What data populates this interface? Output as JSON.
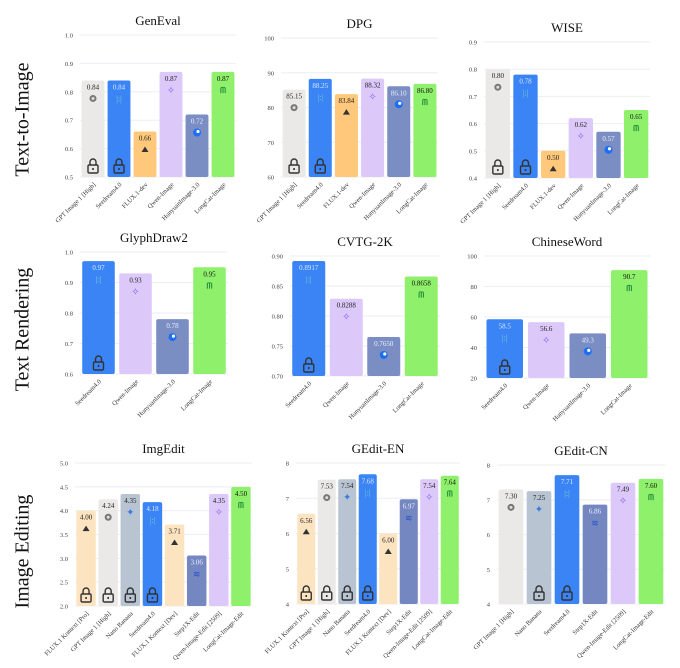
{
  "row_labels": [
    "Text-to-Image",
    "Text Rendering",
    "Image Editing"
  ],
  "models": {
    "gpt": {
      "color": "#ebe9e8",
      "icon": "openai-icon",
      "text": "#222"
    },
    "seedream": {
      "color": "#3a84f6",
      "icon": "seedream-icon",
      "text": "#dce8ff"
    },
    "flux": {
      "color": "#ffc87a",
      "icon": "flux-icon",
      "text": "#222"
    },
    "fluxdev": {
      "color": "#fde4c0",
      "icon": "flux-icon",
      "text": "#222"
    },
    "qwen": {
      "color": "#dcc9fa",
      "icon": "qwen-icon",
      "text": "#222"
    },
    "hunyuan": {
      "color": "#7a8ec4",
      "icon": "hunyuan-icon",
      "text": "#e8eeff"
    },
    "step1x": {
      "color": "#7587c1",
      "icon": "step1x-icon",
      "text": "#e8eeff"
    },
    "nano": {
      "color": "#b9c4d3",
      "icon": "nano-banana-icon",
      "text": "#222"
    },
    "longcat": {
      "color": "#8ff06b",
      "icon": "longcat-icon",
      "text": "#111"
    }
  },
  "chart_data": [
    {
      "type": "bar",
      "title": "GenEval",
      "ylim": [
        0.5,
        1.0
      ],
      "yticks": [
        "0.5",
        "0.6",
        "0.7",
        "0.8",
        "0.9",
        "1.0"
      ],
      "grid": true,
      "categories": [
        "GPT Image 1 [High]",
        "Seedream4.0",
        "FLUX.1-dev",
        "Qwen-Image",
        "HunyuanImage-3.0",
        "LongCat-Image"
      ],
      "values": [
        0.84,
        0.84,
        0.66,
        0.87,
        0.72,
        0.87
      ],
      "value_labels": [
        "0.84",
        "0.84",
        "0.66",
        "0.87",
        "0.72",
        "0.87"
      ],
      "models": [
        "gpt",
        "seedream",
        "flux",
        "qwen",
        "hunyuan",
        "longcat"
      ],
      "locked": [
        true,
        true,
        false,
        false,
        false,
        false
      ]
    },
    {
      "type": "bar",
      "title": "DPG",
      "ylim": [
        60,
        100
      ],
      "yticks": [
        "60",
        "70",
        "80",
        "90",
        "100"
      ],
      "grid": true,
      "categories": [
        "GPT Image 1 [High]",
        "Seedream4.0",
        "FLUX.1-dev",
        "Qwen-Image",
        "HunyuanImage-3.0",
        "LongCat-Image"
      ],
      "values": [
        85.15,
        88.25,
        83.84,
        88.32,
        86.1,
        86.8
      ],
      "value_labels": [
        "85.15",
        "88.25",
        "83.84",
        "88.32",
        "86.10",
        "86.80"
      ],
      "models": [
        "gpt",
        "seedream",
        "flux",
        "qwen",
        "hunyuan",
        "longcat"
      ],
      "locked": [
        true,
        true,
        false,
        false,
        false,
        false
      ]
    },
    {
      "type": "bar",
      "title": "WISE",
      "ylim": [
        0.4,
        0.9
      ],
      "yticks": [
        "0.4",
        "0.5",
        "0.6",
        "0.7",
        "0.8",
        "0.9"
      ],
      "grid": true,
      "categories": [
        "GPT Image 1 [High]",
        "Seedream4.0",
        "FLUX.1-dev",
        "Qwen-Image",
        "HunyuanImage-3.0",
        "LongCat-Image"
      ],
      "values": [
        0.8,
        0.78,
        0.5,
        0.62,
        0.57,
        0.65
      ],
      "value_labels": [
        "0.80",
        "0.78",
        "0.50",
        "0.62",
        "0.57",
        "0.65"
      ],
      "models": [
        "gpt",
        "seedream",
        "flux",
        "qwen",
        "hunyuan",
        "longcat"
      ],
      "locked": [
        true,
        true,
        false,
        false,
        false,
        false
      ]
    },
    {
      "type": "bar",
      "title": "GlyphDraw2",
      "ylim": [
        0.6,
        1.0
      ],
      "yticks": [
        "0.6",
        "0.7",
        "0.8",
        "0.9",
        "1.0"
      ],
      "grid": true,
      "categories": [
        "Seedream4.0",
        "Qwen-Image",
        "HunyuanImage-3.0",
        "LongCat-Image"
      ],
      "values": [
        0.97,
        0.93,
        0.78,
        0.95
      ],
      "value_labels": [
        "0.97",
        "0.93",
        "0.78",
        "0.95"
      ],
      "models": [
        "seedream",
        "qwen",
        "hunyuan",
        "longcat"
      ],
      "locked": [
        true,
        false,
        false,
        false
      ]
    },
    {
      "type": "bar",
      "title": "CVTG-2K",
      "ylim": [
        0.7,
        0.9
      ],
      "yticks": [
        "0.70",
        "0.75",
        "0.80",
        "0.85",
        "0.90"
      ],
      "grid": true,
      "categories": [
        "Seedream4.0",
        "Qwen-Image",
        "HunyuanImage-3.0",
        "LongCat-Image"
      ],
      "values": [
        0.8917,
        0.8288,
        0.765,
        0.8658
      ],
      "value_labels": [
        "0.8917",
        "0.8288",
        "0.7650",
        "0.8658"
      ],
      "models": [
        "seedream",
        "qwen",
        "hunyuan",
        "longcat"
      ],
      "locked": [
        true,
        false,
        false,
        false
      ]
    },
    {
      "type": "bar",
      "title": "ChineseWord",
      "ylim": [
        20,
        100
      ],
      "yticks": [
        "20",
        "40",
        "60",
        "80",
        "100"
      ],
      "grid": true,
      "categories": [
        "Seedream4.0",
        "Qwen-Image",
        "HunyuanImage-3.0",
        "LongCat-Image"
      ],
      "values": [
        58.5,
        56.6,
        49.3,
        90.7
      ],
      "value_labels": [
        "58.5",
        "56.6",
        "49.3",
        "90.7"
      ],
      "models": [
        "seedream",
        "qwen",
        "hunyuan",
        "longcat"
      ],
      "locked": [
        true,
        false,
        false,
        false
      ]
    },
    {
      "type": "bar",
      "title": "ImgEdit",
      "ylim": [
        2.0,
        5.0
      ],
      "yticks": [
        "2.0",
        "2.5",
        "3.0",
        "3.5",
        "4.0",
        "4.5",
        "5.0"
      ],
      "grid": true,
      "categories": [
        "FLUX.1 Kontext [Pro]",
        "GPT Image 1 [High]",
        "Nano Banana",
        "Seedream4.0",
        "FLUX.1 Kontext [Dev]",
        "Step1X-Edit",
        "Qwen-Image-Edit [2509]",
        "LongCat-Image-Edit"
      ],
      "values": [
        4.0,
        4.24,
        4.35,
        4.18,
        3.71,
        3.06,
        4.35,
        4.5
      ],
      "value_labels": [
        "4.00",
        "4.24",
        "4.35",
        "4.18",
        "3.71",
        "3.06",
        "4.35",
        "4.50"
      ],
      "models": [
        "fluxdev",
        "gpt",
        "nano",
        "seedream",
        "fluxdev",
        "step1x",
        "qwen",
        "longcat"
      ],
      "locked": [
        true,
        true,
        true,
        true,
        false,
        false,
        false,
        false
      ]
    },
    {
      "type": "bar",
      "title": "GEdit-EN",
      "ylim": [
        4,
        8
      ],
      "yticks": [
        "4",
        "5",
        "6",
        "7",
        "8"
      ],
      "grid": true,
      "categories": [
        "FLUX.1 Kontext [Pro]",
        "GPT Image 1 [High]",
        "Nano Banana",
        "Seedream4.0",
        "FLUX.1 Kontext [Dev]",
        "Step1X-Edit",
        "Qwen-Image-Edit [2509]",
        "LongCat-Image-Edit"
      ],
      "values": [
        6.56,
        7.53,
        7.54,
        7.68,
        6.0,
        6.97,
        7.54,
        7.64
      ],
      "value_labels": [
        "6.56",
        "7.53",
        "7.54",
        "7.68",
        "6.00",
        "6.97",
        "7.54",
        "7.64"
      ],
      "models": [
        "fluxdev",
        "gpt",
        "nano",
        "seedream",
        "fluxdev",
        "step1x",
        "qwen",
        "longcat"
      ],
      "locked": [
        true,
        true,
        true,
        true,
        false,
        false,
        false,
        false
      ]
    },
    {
      "type": "bar",
      "title": "GEdit-CN",
      "ylim": [
        4,
        8
      ],
      "yticks": [
        "4",
        "5",
        "6",
        "7",
        "8"
      ],
      "grid": true,
      "categories": [
        "GPT Image 1 [High]",
        "Nano Banana",
        "Seedream4.0",
        "Step1X-Edit",
        "Qwen-Image-Edit [2509]",
        "LongCat-Image-Edit"
      ],
      "values": [
        7.3,
        7.25,
        7.71,
        6.86,
        7.49,
        7.6
      ],
      "value_labels": [
        "7.30",
        "7.25",
        "7.71",
        "6.86",
        "7.49",
        "7.60"
      ],
      "models": [
        "gpt",
        "nano",
        "seedream",
        "step1x",
        "qwen",
        "longcat"
      ],
      "locked": [
        false,
        true,
        true,
        false,
        false,
        false
      ]
    }
  ]
}
